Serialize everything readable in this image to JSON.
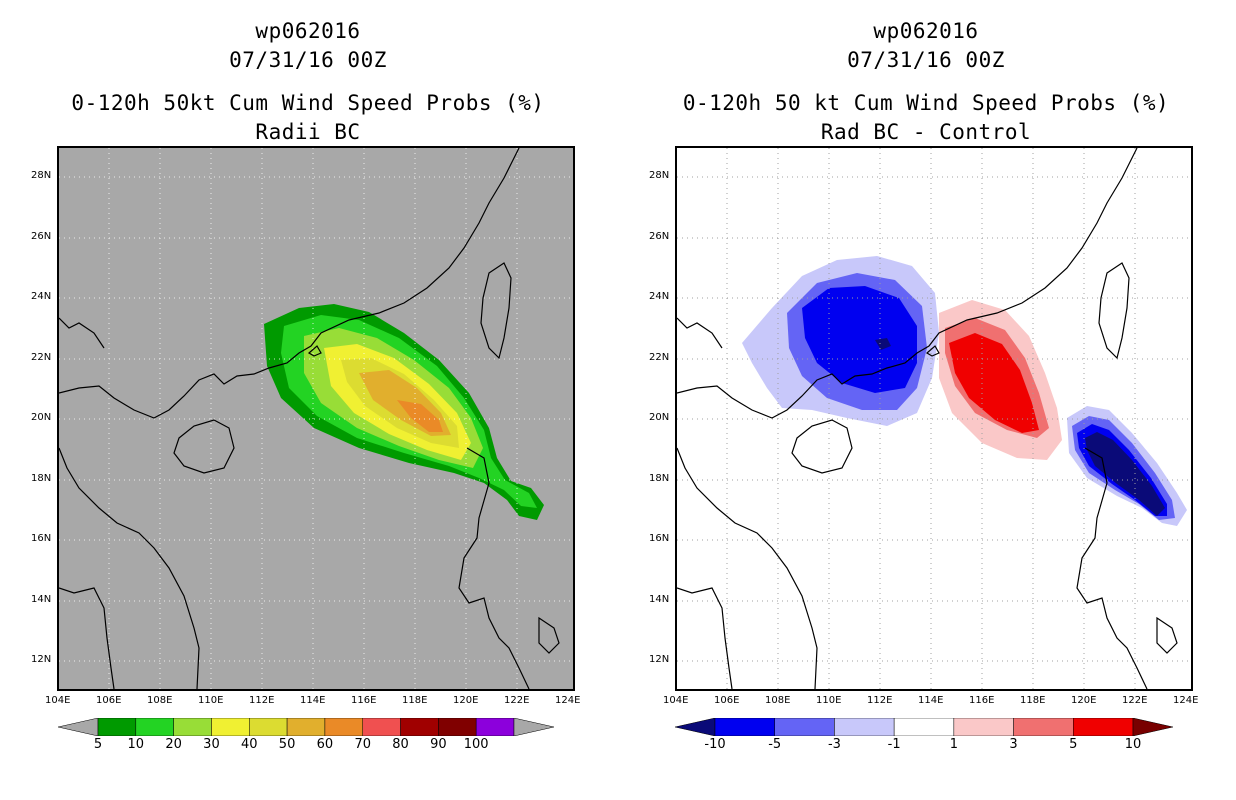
{
  "left_panel": {
    "storm_id": "wp062016",
    "datetime": "07/31/16 00Z",
    "product": "0-120h 50kt Cum Wind Speed Probs (%)",
    "subtitle": "Radii BC",
    "background_color": "#a8a8a8",
    "colorbar": {
      "labels": [
        "5",
        "10",
        "20",
        "30",
        "40",
        "50",
        "60",
        "70",
        "80",
        "90",
        "100"
      ],
      "colors": [
        "#a8a8a8",
        "#009a00",
        "#23d323",
        "#98dd37",
        "#f0f032",
        "#dcdc31",
        "#e1af2d",
        "#ea8a27",
        "#f05050",
        "#a00000",
        "#800000",
        "#8c00dc",
        "#a8a8a8"
      ]
    }
  },
  "right_panel": {
    "storm_id": "wp062016",
    "datetime": "07/31/16 00Z",
    "product": "0-120h 50 kt Cum Wind Speed Probs (%)",
    "subtitle": "Rad BC - Control",
    "background_color": "#ffffff",
    "colorbar": {
      "labels": [
        "-10",
        "-5",
        "-3",
        "-1",
        "1",
        "3",
        "5",
        "10"
      ],
      "colors": [
        "#0a0a78",
        "#0000f0",
        "#6464f5",
        "#c8c8fa",
        "#ffffff",
        "#fac8c8",
        "#f07070",
        "#f00000",
        "#780000"
      ]
    }
  },
  "lat_labels": [
    "28N",
    "26N",
    "24N",
    "22N",
    "20N",
    "18N",
    "16N",
    "14N",
    "12N"
  ],
  "lon_labels": [
    "104E",
    "106E",
    "108E",
    "110E",
    "112E",
    "114E",
    "116E",
    "118E",
    "120E",
    "122E",
    "124E"
  ]
}
